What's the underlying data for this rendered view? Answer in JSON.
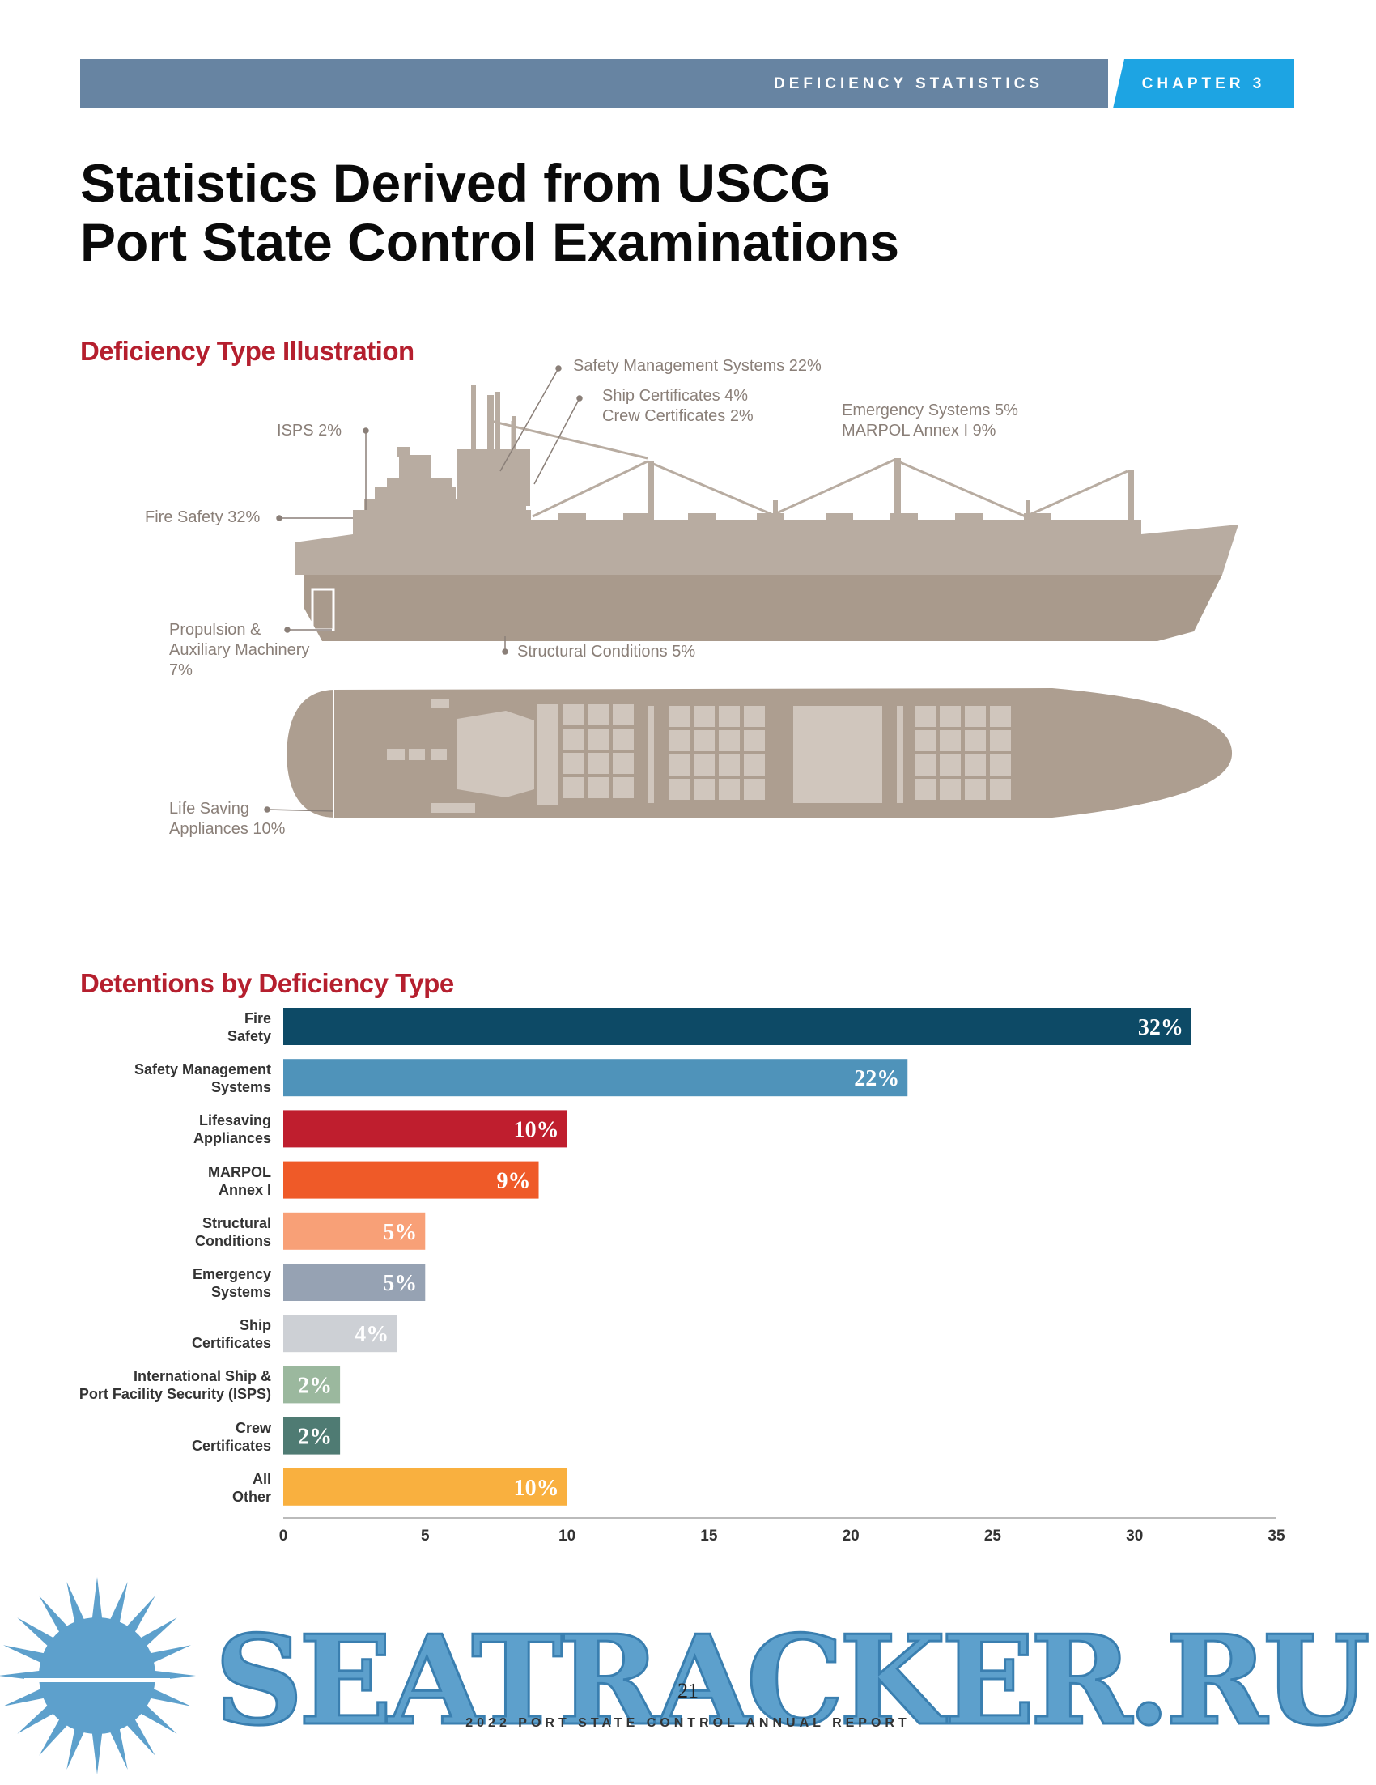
{
  "header": {
    "section": "DEFICIENCY STATISTICS",
    "chapter": "CHAPTER 3",
    "section_color": "#6784a2",
    "chapter_color": "#1da4e3"
  },
  "title": {
    "line1": "Statistics Derived from USCG",
    "line2": "Port State Control Examinations"
  },
  "illustration": {
    "heading": "Deficiency Type Illustration",
    "callouts": {
      "sms": "Safety Management Systems 22%",
      "ship_certs": "Ship Certificates 4%",
      "crew_certs": "Crew Certificates 2%",
      "emergency": "Emergency Systems 5%",
      "marpol": "MARPOL Annex I 9%",
      "isps": "ISPS 2%",
      "fire": "Fire Safety 32%",
      "propulsion_1": "Propulsion &",
      "propulsion_2": "Auxiliary Machinery",
      "propulsion_3": "7%",
      "structural": "Structural Conditions 5%",
      "life_1": "Life Saving",
      "life_2": "Appliances 10%"
    },
    "hull_color": "#b8aca1",
    "hull_dark": "#a99a8c"
  },
  "chart_data": {
    "type": "bar",
    "orientation": "horizontal",
    "title": "Detentions by Deficiency Type",
    "categories": [
      [
        "Fire",
        "Safety"
      ],
      [
        "Safety Management",
        "Systems"
      ],
      [
        "Lifesaving",
        "Appliances"
      ],
      [
        "MARPOL",
        "Annex I"
      ],
      [
        "Structural",
        "Conditions"
      ],
      [
        "Emergency",
        "Systems"
      ],
      [
        "Ship",
        "Certificates"
      ],
      [
        "International Ship &",
        "Port Facility Security (ISPS)"
      ],
      [
        "Crew",
        "Certificates"
      ],
      [
        "All",
        "Other"
      ]
    ],
    "values": [
      32,
      22,
      10,
      9,
      5,
      5,
      4,
      2,
      2,
      10
    ],
    "value_labels": [
      "32%",
      "22%",
      "10%",
      "9%",
      "5%",
      "5%",
      "4%",
      "2%",
      "2%",
      "10%"
    ],
    "colors": [
      "#0d4a66",
      "#4f93ba",
      "#bf1e2e",
      "#ef5a28",
      "#f8a077",
      "#96a2b3",
      "#cdd0d5",
      "#9bb89e",
      "#4f7b73",
      "#f9b03f"
    ],
    "xlim": [
      0,
      35
    ],
    "xticks": [
      0,
      5,
      10,
      15,
      20,
      25,
      30,
      35
    ],
    "xlabel": "",
    "ylabel": ""
  },
  "footer": {
    "page_number": "21",
    "report_name": "2022 PORT STATE CONTROL ANNUAL REPORT"
  },
  "watermark": {
    "text": "SEATRACKER.RU",
    "color": "#5da0cc"
  }
}
